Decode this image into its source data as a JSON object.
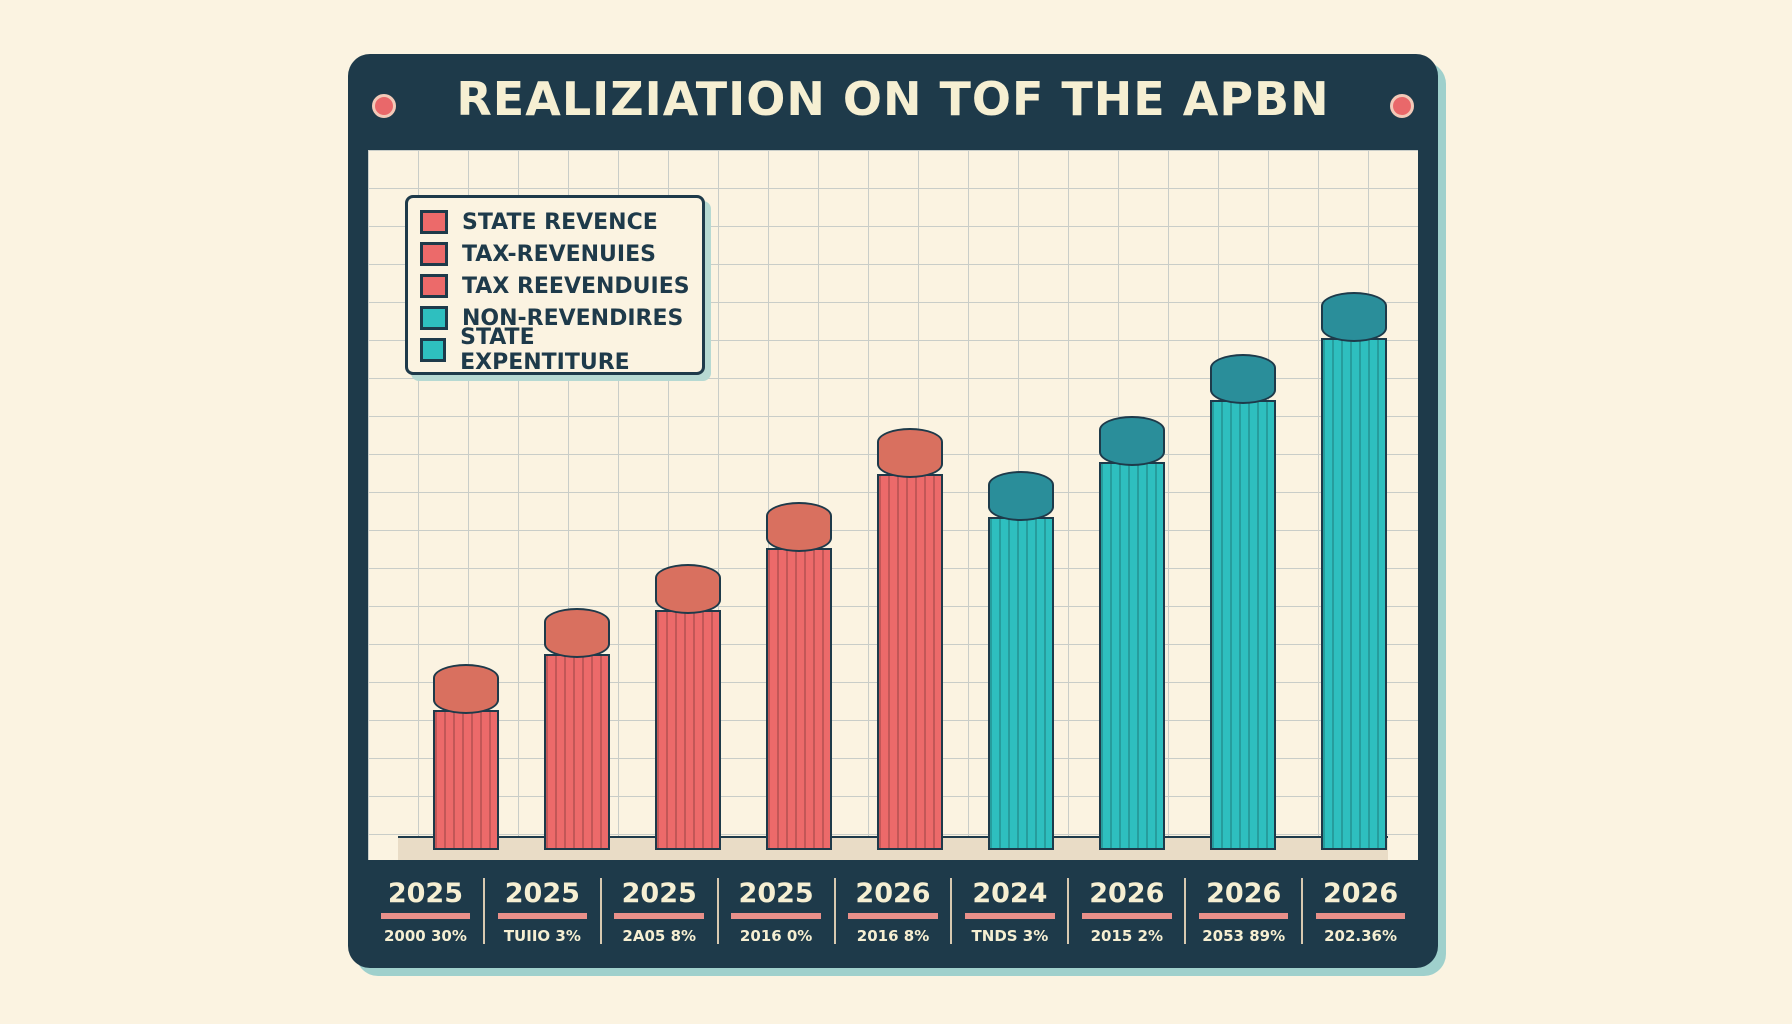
{
  "title": "REALIZIATION ON TOF THE APBN",
  "legend": [
    {
      "label": "STATE REVENCE",
      "color": "#ec6a6a"
    },
    {
      "label": "TAX-REVENUIES",
      "color": "#ec6a6a"
    },
    {
      "label": "TAX REEVENDUIES",
      "color": "#ec6a6a"
    },
    {
      "label": "NON-REVENDIRES",
      "color": "#2ebfbf"
    },
    {
      "label": "STATE EXPENTITURE",
      "color": "#2ebfbf"
    }
  ],
  "chart_data": {
    "type": "bar",
    "title": "REALIZIATION ON TOF THE APBN",
    "categories": [
      "2025",
      "2025",
      "2025",
      "2025",
      "2026",
      "2024",
      "2026",
      "2026",
      "2026"
    ],
    "sublabels": [
      "2000 30%",
      "TUIIO 3%",
      "2A05 8%",
      "2016 0%",
      "2016 8%",
      "TNDS 3%",
      "2015 2%",
      "2053 89%",
      "202.36%"
    ],
    "values": [
      22,
      31,
      38,
      48,
      60,
      53,
      62,
      72,
      82
    ],
    "colors": [
      "#ec6a6a",
      "#ec6a6a",
      "#ec6a6a",
      "#ec6a6a",
      "#ec6a6a",
      "#2ebfbf",
      "#2ebfbf",
      "#2ebfbf",
      "#2ebfbf"
    ],
    "ylim": [
      0,
      100
    ],
    "grid": true,
    "legend_position": "top-left",
    "xlabel": "",
    "ylabel": ""
  }
}
